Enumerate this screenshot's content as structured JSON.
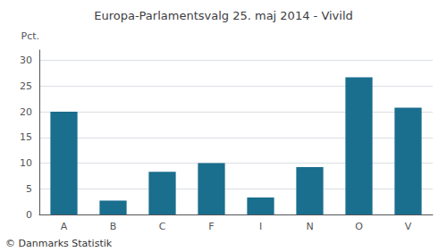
{
  "chart_data": {
    "type": "bar",
    "title": "Europa-Parlamentsvalg 25. maj 2014 - Vivild",
    "categories": [
      "A",
      "B",
      "C",
      "F",
      "I",
      "N",
      "O",
      "V"
    ],
    "values": [
      20.0,
      2.7,
      8.3,
      10.0,
      3.3,
      9.2,
      26.7,
      20.8
    ],
    "color": "#1a6e8e",
    "ylabel": "Pct.",
    "ylim": [
      0,
      32
    ],
    "yticks": [
      0,
      5,
      10,
      15,
      20,
      25,
      30
    ],
    "grid": true,
    "annotations": [
      "© Danmarks Statistik"
    ]
  }
}
